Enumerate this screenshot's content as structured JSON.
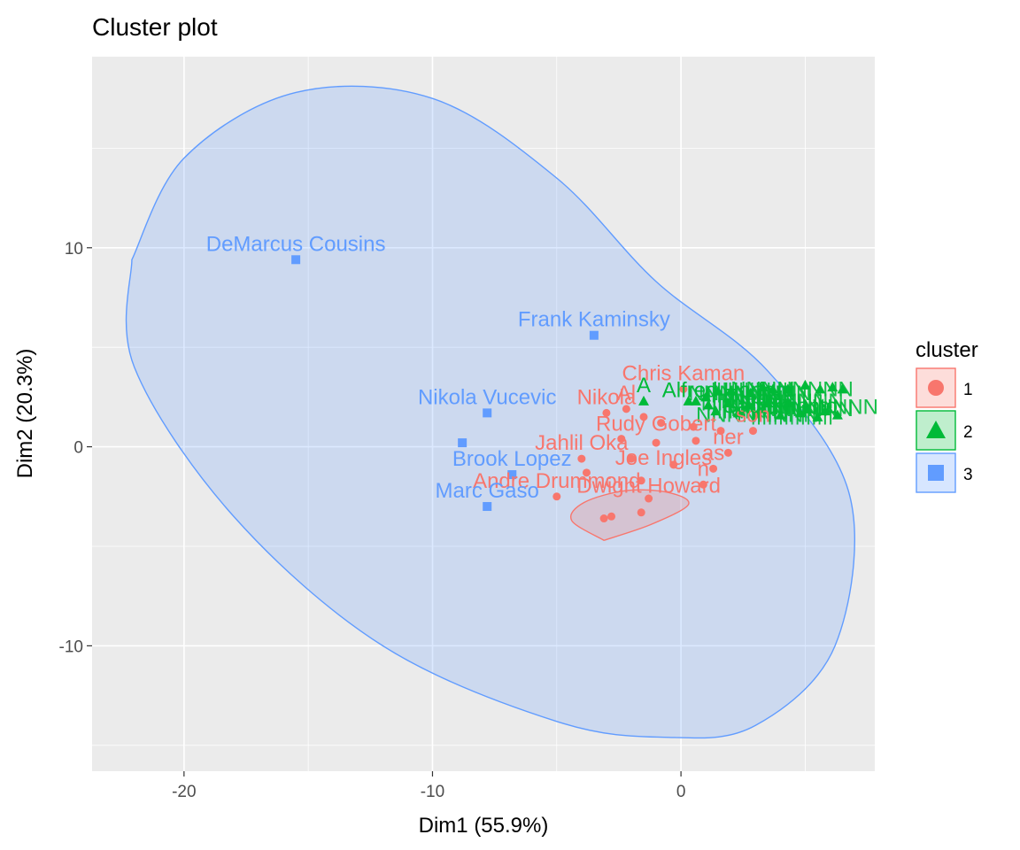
{
  "chart_data": {
    "type": "scatter",
    "title": "Cluster plot",
    "xlabel": "Dim1 (55.9%)",
    "ylabel": "Dim2 (20.3%)",
    "xlim": [
      -23.7,
      7.8
    ],
    "ylim": [
      -16.3,
      19.6
    ],
    "x_ticks": [
      -20,
      -10,
      0
    ],
    "y_ticks": [
      -10,
      0,
      10
    ],
    "grid": true,
    "legend": {
      "title": "cluster",
      "position": "right"
    },
    "colors": {
      "1": "#F8766D",
      "2": "#00BA38",
      "3": "#619CFF"
    },
    "series": [
      {
        "name": "1",
        "marker": "circle",
        "points": [
          {
            "x": 0.1,
            "y": 2.9,
            "label": "Chris Kaman"
          },
          {
            "x": -3.0,
            "y": 1.7,
            "label": "Nikola"
          },
          {
            "x": -2.2,
            "y": 1.9,
            "label": "Al"
          },
          {
            "x": -1.5,
            "y": 1.5,
            "label": ""
          },
          {
            "x": -0.8,
            "y": 1.2,
            "label": ""
          },
          {
            "x": 0.5,
            "y": 1.0,
            "label": ""
          },
          {
            "x": 1.6,
            "y": 0.8,
            "label": ""
          },
          {
            "x": 2.9,
            "y": 0.8,
            "label": "son"
          },
          {
            "x": -2.4,
            "y": 0.4,
            "label": ""
          },
          {
            "x": -1.0,
            "y": 0.2,
            "label": ""
          },
          {
            "x": 0.6,
            "y": 0.3,
            "label": ""
          },
          {
            "x": 1.9,
            "y": -0.3,
            "label": "ner"
          },
          {
            "x": -4.0,
            "y": -0.6,
            "label": "Jahlil Oka"
          },
          {
            "x": -2.0,
            "y": -0.6,
            "label": ""
          },
          {
            "x": -0.3,
            "y": -0.9,
            "label": ""
          },
          {
            "x": 1.3,
            "y": -1.1,
            "label": "as"
          },
          {
            "x": -3.8,
            "y": -1.3,
            "label": ""
          },
          {
            "x": -1.6,
            "y": -1.7,
            "label": ""
          },
          {
            "x": 0.9,
            "y": -1.9,
            "label": "n"
          },
          {
            "x": -5.0,
            "y": -2.5,
            "label": "Andre Drummond"
          },
          {
            "x": -1.3,
            "y": -2.6,
            "label": ""
          },
          {
            "x": -3.1,
            "y": -3.6,
            "label": ""
          },
          {
            "x": -2.8,
            "y": -3.5,
            "label": ""
          },
          {
            "x": -1.6,
            "y": -3.3,
            "label": ""
          }
        ]
      },
      {
        "name": "2",
        "marker": "triangle",
        "points": [
          {
            "x": 0.3,
            "y": 2.3,
            "label": ""
          },
          {
            "x": 0.6,
            "y": 2.3,
            "label": ""
          },
          {
            "x": -1.5,
            "y": 2.3,
            "label": "A"
          },
          {
            "x": 1.0,
            "y": 2.5,
            "label": ""
          },
          {
            "x": 1.5,
            "y": 2.8,
            "label": ""
          },
          {
            "x": 2.0,
            "y": 2.8,
            "label": ""
          },
          {
            "x": 2.8,
            "y": 2.7,
            "label": ""
          },
          {
            "x": 3.3,
            "y": 3.0,
            "label": ""
          },
          {
            "x": 3.7,
            "y": 2.9,
            "label": ""
          },
          {
            "x": 4.3,
            "y": 2.9,
            "label": ""
          },
          {
            "x": 5.0,
            "y": 3.1,
            "label": ""
          },
          {
            "x": 5.6,
            "y": 2.9,
            "label": ""
          },
          {
            "x": 6.1,
            "y": 3.0,
            "label": ""
          },
          {
            "x": 6.5,
            "y": 2.9,
            "label": ""
          },
          {
            "x": 1.1,
            "y": 2.1,
            "label": ""
          },
          {
            "x": 1.9,
            "y": 2.2,
            "label": ""
          },
          {
            "x": 2.7,
            "y": 2.1,
            "label": ""
          },
          {
            "x": 3.5,
            "y": 2.2,
            "label": ""
          },
          {
            "x": 4.3,
            "y": 2.2,
            "label": ""
          },
          {
            "x": 5.1,
            "y": 1.9,
            "label": ""
          },
          {
            "x": 5.8,
            "y": 1.8,
            "label": ""
          },
          {
            "x": 1.4,
            "y": 1.8,
            "label": ""
          },
          {
            "x": 2.3,
            "y": 1.7,
            "label": ""
          },
          {
            "x": 3.1,
            "y": 1.7,
            "label": ""
          },
          {
            "x": 4.0,
            "y": 1.6,
            "label": ""
          },
          {
            "x": 4.8,
            "y": 1.7,
            "label": ""
          },
          {
            "x": 5.5,
            "y": 1.5,
            "label": ""
          },
          {
            "x": 6.3,
            "y": 1.6,
            "label": ""
          }
        ]
      },
      {
        "name": "3",
        "marker": "square",
        "points": [
          {
            "x": -15.5,
            "y": 9.4,
            "label": "DeMarcus Cousins"
          },
          {
            "x": -3.5,
            "y": 5.6,
            "label": "Frank Kaminsky"
          },
          {
            "x": -7.8,
            "y": 1.7,
            "label": "Nikola Vucevic"
          },
          {
            "x": -8.8,
            "y": 0.2,
            "label": ""
          },
          {
            "x": -6.8,
            "y": -1.4,
            "label": "Brook Lopez"
          },
          {
            "x": -7.8,
            "y": -3.0,
            "label": "Marc Gaso"
          }
        ]
      }
    ],
    "ellipses": [
      {
        "cluster": "1",
        "path": [
          [
            -3.1,
            -4.7
          ],
          [
            -4.4,
            -3.7
          ],
          [
            -3.9,
            -2.8
          ],
          [
            -2.2,
            -2.2
          ],
          [
            -0.5,
            -2.3
          ],
          [
            0.3,
            -2.9
          ],
          [
            -1.2,
            -3.9
          ],
          [
            -3.1,
            -4.7
          ]
        ]
      },
      {
        "cluster": "3",
        "path": [
          [
            -22.1,
            9.4
          ],
          [
            -20.0,
            14.5
          ],
          [
            -15.5,
            17.8
          ],
          [
            -10.0,
            17.5
          ],
          [
            -5.0,
            13.5
          ],
          [
            -1.0,
            8.3
          ],
          [
            3.5,
            3.8
          ],
          [
            6.8,
            -2.5
          ],
          [
            6.2,
            -10.0
          ],
          [
            3.0,
            -14.0
          ],
          [
            -0.5,
            -14.6
          ],
          [
            -5.0,
            -13.8
          ],
          [
            -12.0,
            -10.0
          ],
          [
            -18.0,
            -3.5
          ],
          [
            -22.0,
            4.0
          ],
          [
            -22.1,
            9.4
          ]
        ]
      }
    ],
    "extra_labels": [
      {
        "text": "Alfred Horford",
        "cluster": "2"
      },
      {
        "text": "Nene",
        "cluster": "2"
      },
      {
        "text": "Sacramento",
        "cluster": "2"
      },
      {
        "text": "Rudy Gobert",
        "cluster": "1"
      },
      {
        "text": "Joe Ingles",
        "cluster": "1"
      },
      {
        "text": "Dwight Howard",
        "cluster": "1"
      }
    ]
  }
}
